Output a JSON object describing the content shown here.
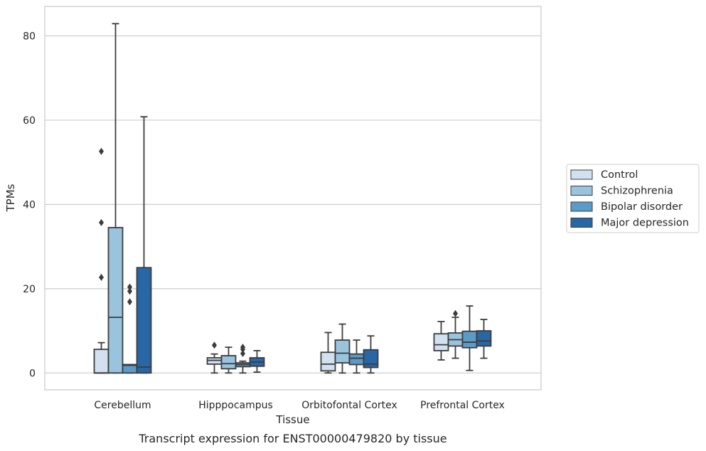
{
  "caption": "Transcript expression for ENST00000479820 by tissue",
  "chart_data": {
    "type": "box",
    "xlabel": "Tissue",
    "ylabel": "TPMs",
    "ylim": [
      -4,
      87
    ],
    "yticks": [
      0,
      20,
      40,
      60,
      80
    ],
    "grid": true,
    "legend_position": "right",
    "categories": [
      "Cerebellum",
      "Hipppocampus",
      "Orbitofontal Cortex",
      "Prefrontal Cortex"
    ],
    "series": [
      {
        "name": "Control",
        "color": "#d1e1ef",
        "boxes": [
          {
            "whislo": 0.0,
            "q1": 0.0,
            "med": 0.0,
            "q3": 5.6,
            "whishi": 7.2,
            "fliers": [
              22.7,
              35.7,
              52.6
            ]
          },
          {
            "whislo": 0.0,
            "q1": 2.1,
            "med": 3.0,
            "q3": 3.6,
            "whishi": 4.5,
            "fliers": [
              6.6
            ]
          },
          {
            "whislo": 0.0,
            "q1": 0.5,
            "med": 2.1,
            "q3": 4.9,
            "whishi": 9.6,
            "fliers": []
          },
          {
            "whislo": 3.1,
            "q1": 5.3,
            "med": 6.7,
            "q3": 9.3,
            "whishi": 12.2,
            "fliers": []
          }
        ]
      },
      {
        "name": "Schizophrenia",
        "color": "#9ac3de",
        "boxes": [
          {
            "whislo": 0.0,
            "q1": 0.0,
            "med": 13.2,
            "q3": 34.5,
            "whishi": 82.9,
            "fliers": []
          },
          {
            "whislo": 0.0,
            "q1": 1.0,
            "med": 2.2,
            "q3": 4.1,
            "whishi": 6.1,
            "fliers": []
          },
          {
            "whislo": 0.0,
            "q1": 2.4,
            "med": 4.7,
            "q3": 7.8,
            "whishi": 11.6,
            "fliers": []
          },
          {
            "whislo": 3.5,
            "q1": 6.4,
            "med": 7.9,
            "q3": 9.5,
            "whishi": 13.2,
            "fliers": [
              14.1
            ]
          }
        ]
      },
      {
        "name": "Bipolar disorder",
        "color": "#5b9bc8",
        "boxes": [
          {
            "whislo": 0.0,
            "q1": 0.0,
            "med": 1.8,
            "q3": 2.0,
            "whishi": 2.0,
            "fliers": [
              16.9,
              19.4,
              20.4
            ]
          },
          {
            "whislo": 0.0,
            "q1": 1.5,
            "med": 2.0,
            "q3": 2.4,
            "whishi": 2.8,
            "fliers": [
              4.6,
              5.6,
              6.1
            ]
          },
          {
            "whislo": 0.0,
            "q1": 2.0,
            "med": 3.5,
            "q3": 4.5,
            "whishi": 7.8,
            "fliers": []
          },
          {
            "whislo": 0.6,
            "q1": 6.0,
            "med": 7.3,
            "q3": 9.9,
            "whishi": 15.9,
            "fliers": []
          }
        ]
      },
      {
        "name": "Major depression",
        "color": "#2866a6",
        "boxes": [
          {
            "whislo": 0.0,
            "q1": 0.0,
            "med": 1.4,
            "q3": 25.0,
            "whishi": 60.8,
            "fliers": []
          },
          {
            "whislo": 0.2,
            "q1": 1.6,
            "med": 2.6,
            "q3": 3.6,
            "whishi": 5.3,
            "fliers": []
          },
          {
            "whislo": 0.0,
            "q1": 1.3,
            "med": 2.1,
            "q3": 5.5,
            "whishi": 8.8,
            "fliers": []
          },
          {
            "whislo": 3.5,
            "q1": 6.4,
            "med": 7.6,
            "q3": 10.0,
            "whishi": 12.7,
            "fliers": []
          }
        ]
      }
    ]
  }
}
